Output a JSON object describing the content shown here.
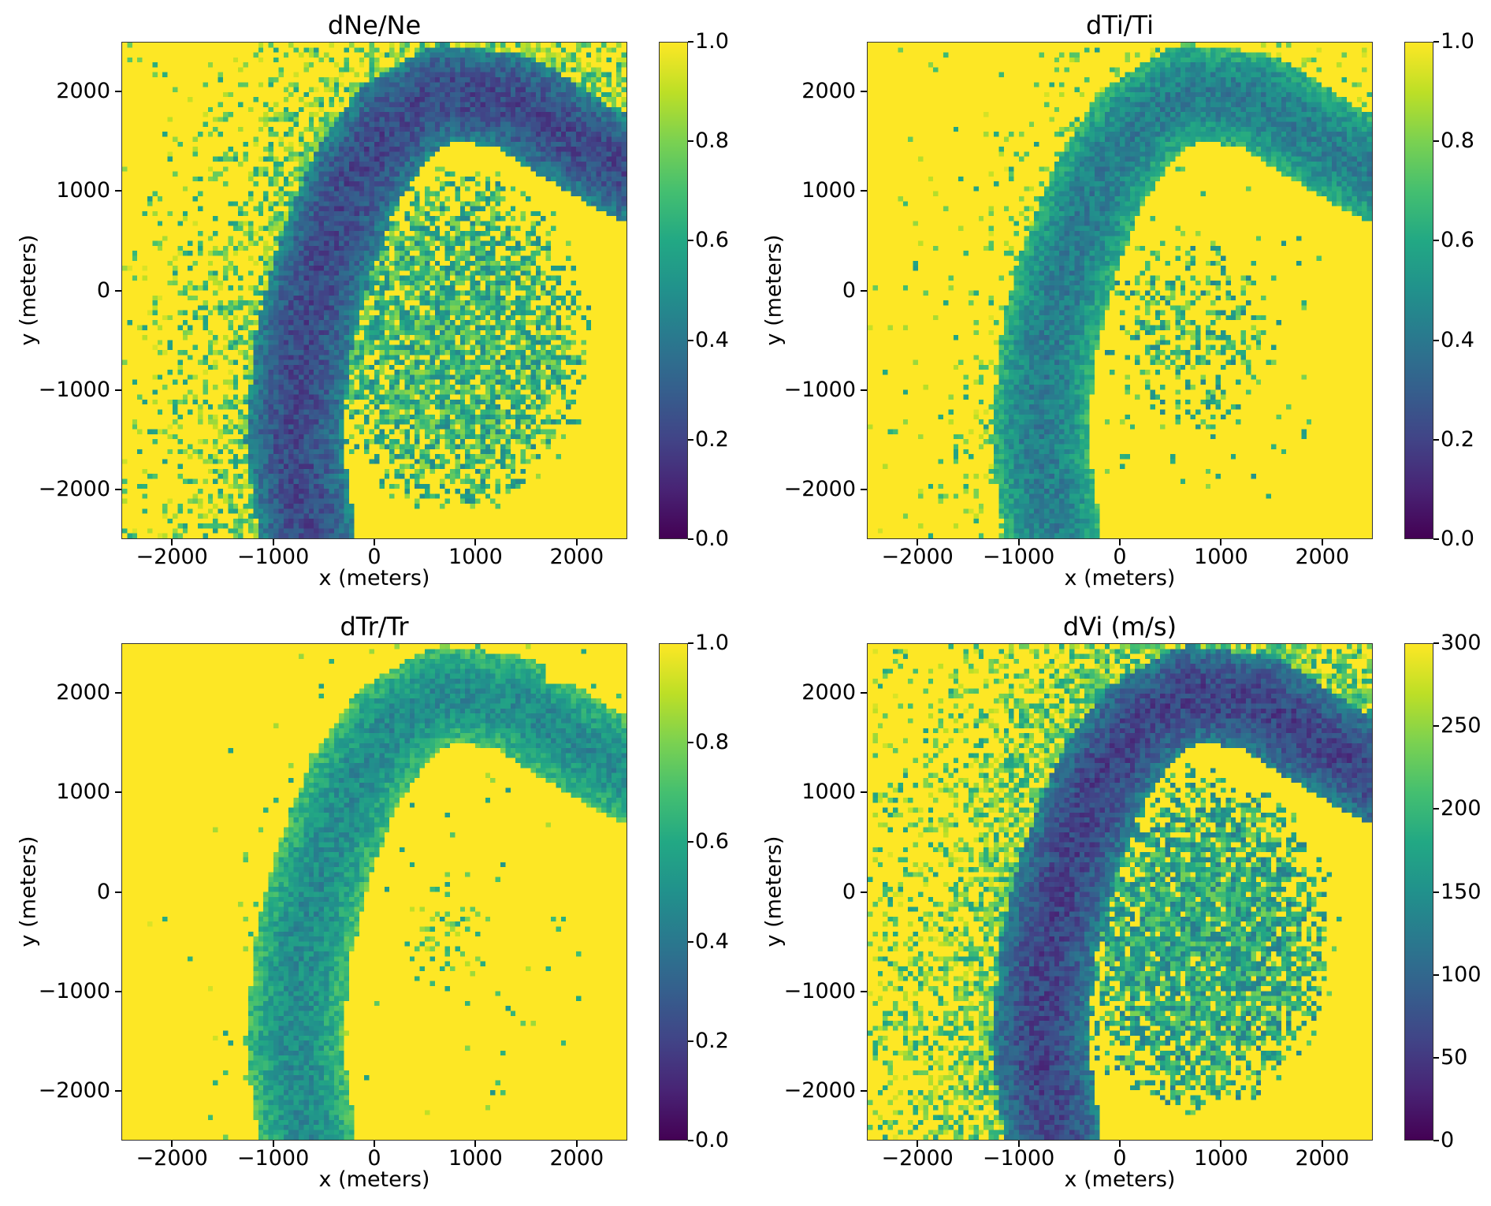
{
  "chart_data": [
    {
      "type": "heatmap",
      "title": "dNe/Ne",
      "xlabel": "x (meters)",
      "ylabel": "y (meters)",
      "xlim": [
        -2500,
        2500
      ],
      "ylim": [
        -2500,
        2500
      ],
      "bin_size": 50,
      "xticks": [
        "−2000",
        "−1000",
        "0",
        "1000",
        "2000"
      ],
      "xtick_values": [
        -2000,
        -1000,
        0,
        1000,
        2000
      ],
      "yticks": [
        "−2000",
        "−1000",
        "0",
        "1000",
        "2000"
      ],
      "ytick_values": [
        -2000,
        -1000,
        0,
        1000,
        2000
      ],
      "colorbar": {
        "range": [
          0,
          1
        ],
        "ticks": [
          "0.0",
          "0.2",
          "0.4",
          "0.6",
          "0.8",
          "1.0"
        ],
        "tick_values": [
          0,
          0.2,
          0.4,
          0.6,
          0.8,
          1.0
        ],
        "colormap": "viridis"
      },
      "model": {
        "band_low": 0.22,
        "inner_value": 0.65,
        "inner_prob": 0.85,
        "halo_prob": 0.7,
        "halo_decay_m": 600,
        "scale": 1
      }
    },
    {
      "type": "heatmap",
      "title": "dTi/Ti",
      "xlabel": "x (meters)",
      "ylabel": "y (meters)",
      "xlim": [
        -2500,
        2500
      ],
      "ylim": [
        -2500,
        2500
      ],
      "bin_size": 50,
      "xticks": [
        "−2000",
        "−1000",
        "0",
        "1000",
        "2000"
      ],
      "xtick_values": [
        -2000,
        -1000,
        0,
        1000,
        2000
      ],
      "yticks": [
        "−2000",
        "−1000",
        "0",
        "1000",
        "2000"
      ],
      "ytick_values": [
        -2000,
        -1000,
        0,
        1000,
        2000
      ],
      "colorbar": {
        "range": [
          0,
          1
        ],
        "ticks": [
          "0.0",
          "0.2",
          "0.4",
          "0.6",
          "0.8",
          "1.0"
        ],
        "tick_values": [
          0,
          0.2,
          0.4,
          0.6,
          0.8,
          1.0
        ],
        "colormap": "viridis"
      },
      "model": {
        "band_low": 0.42,
        "inner_value": 0.65,
        "inner_prob": 0.45,
        "halo_prob": 0.2,
        "halo_decay_m": 500,
        "scale": 1
      }
    },
    {
      "type": "heatmap",
      "title": "dTr/Tr",
      "xlabel": "x (meters)",
      "ylabel": "y (meters)",
      "xlim": [
        -2500,
        2500
      ],
      "ylim": [
        -2500,
        2500
      ],
      "bin_size": 50,
      "xticks": [
        "−2000",
        "−1000",
        "0",
        "1000",
        "2000"
      ],
      "xtick_values": [
        -2000,
        -1000,
        0,
        1000,
        2000
      ],
      "yticks": [
        "−2000",
        "−1000",
        "0",
        "1000",
        "2000"
      ],
      "ytick_values": [
        -2000,
        -1000,
        0,
        1000,
        2000
      ],
      "colorbar": {
        "range": [
          0,
          1
        ],
        "ticks": [
          "0.0",
          "0.2",
          "0.4",
          "0.6",
          "0.8",
          "1.0"
        ],
        "tick_values": [
          0,
          0.2,
          0.4,
          0.6,
          0.8,
          1.0
        ],
        "colormap": "viridis"
      },
      "model": {
        "band_low": 0.48,
        "inner_value": 0.72,
        "inner_prob": 0.25,
        "halo_prob": 0.04,
        "halo_decay_m": 400,
        "scale": 1
      }
    },
    {
      "type": "heatmap",
      "title": "dVi (m/s)",
      "xlabel": "x (meters)",
      "ylabel": "y (meters)",
      "xlim": [
        -2500,
        2500
      ],
      "ylim": [
        -2500,
        2500
      ],
      "bin_size": 50,
      "xticks": [
        "−2000",
        "−1000",
        "0",
        "1000",
        "2000"
      ],
      "xtick_values": [
        -2000,
        -1000,
        0,
        1000,
        2000
      ],
      "yticks": [
        "−2000",
        "−1000",
        "0",
        "1000",
        "2000"
      ],
      "ytick_values": [
        -2000,
        -1000,
        0,
        1000,
        2000
      ],
      "colorbar": {
        "range": [
          0,
          300
        ],
        "ticks": [
          "0",
          "50",
          "100",
          "150",
          "200",
          "250",
          "300"
        ],
        "tick_values": [
          0,
          50,
          100,
          150,
          200,
          250,
          300
        ],
        "colormap": "viridis"
      },
      "model": {
        "band_low": 0.2,
        "inner_value": 0.6,
        "inner_prob": 0.9,
        "halo_prob": 0.85,
        "halo_decay_m": 900,
        "scale": 300
      }
    }
  ],
  "band_path_m": [
    [
      -650,
      -2600
    ],
    [
      -800,
      -1500
    ],
    [
      -700,
      -500
    ],
    [
      -500,
      300
    ],
    [
      -200,
      1100
    ],
    [
      200,
      1700
    ],
    [
      700,
      2000
    ],
    [
      1400,
      1900
    ],
    [
      2000,
      1500
    ],
    [
      2600,
      1150
    ]
  ],
  "band_halfwidth_m": 480
}
